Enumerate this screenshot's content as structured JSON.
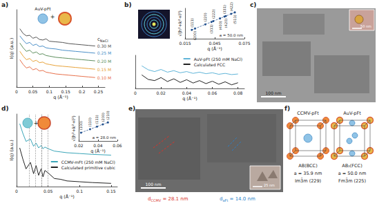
{
  "chart_data": [
    {
      "type": "line",
      "title": "a)",
      "x_label": "q (Å⁻¹)",
      "y_label": "I(q) (a.u.)",
      "icon_labels": [
        "AuV-pFt",
        "+"
      ],
      "series_header": {
        "text": "c",
        "subscript": "NaCl"
      },
      "x": [
        0.01,
        0.02,
        0.03,
        0.04,
        0.05,
        0.06,
        0.07,
        0.08,
        0.09,
        0.1,
        0.12,
        0.14,
        0.16,
        0.18,
        0.2,
        0.22,
        0.24
      ],
      "series": [
        {
          "name": "0.30 M",
          "color": "#555555",
          "values": [
            9.8,
            9.0,
            8.6,
            8.7,
            8.2,
            8.4,
            8.0,
            7.9,
            8.1,
            7.7,
            7.6,
            7.5,
            7.3,
            7.2,
            7.1,
            7.0,
            6.9
          ]
        },
        {
          "name": "0.25 M",
          "color": "#4a8fc8",
          "values": [
            8.6,
            7.9,
            7.3,
            7.5,
            7.0,
            7.2,
            6.8,
            6.9,
            6.6,
            6.5,
            6.4,
            6.2,
            6.1,
            6.0,
            5.9,
            5.8,
            5.7
          ]
        },
        {
          "name": "0.20 M",
          "color": "#5e8f5e",
          "values": [
            7.4,
            6.6,
            6.0,
            6.2,
            5.7,
            5.9,
            5.5,
            5.6,
            5.3,
            5.2,
            5.0,
            4.9,
            4.8,
            4.7,
            4.6,
            4.5,
            4.4
          ]
        },
        {
          "name": "0.15 M",
          "color": "#e8a33a",
          "values": [
            6.0,
            5.2,
            4.6,
            4.8,
            4.3,
            4.5,
            4.1,
            4.2,
            3.9,
            3.8,
            3.6,
            3.5,
            3.4,
            3.3,
            3.2,
            3.1,
            3.0
          ]
        },
        {
          "name": "0.10 M",
          "color": "#e8704a",
          "values": [
            4.6,
            3.8,
            3.2,
            3.4,
            2.9,
            3.1,
            2.7,
            2.8,
            2.5,
            2.4,
            2.2,
            2.1,
            2.0,
            1.9,
            1.8,
            1.7,
            1.6
          ]
        }
      ],
      "xlim": [
        0,
        0.27
      ],
      "xticks": [
        0,
        0.05,
        0.1,
        0.15,
        0.2,
        0.25
      ],
      "ylim": [
        0,
        13
      ],
      "tick_labels": "x"
    },
    {
      "type": "line",
      "title": "b)",
      "x_label": "q (Å⁻¹)",
      "x": [
        0.005,
        0.01,
        0.015,
        0.02,
        0.025,
        0.03,
        0.035,
        0.04,
        0.045,
        0.05,
        0.055,
        0.06,
        0.065,
        0.07,
        0.075,
        0.08
      ],
      "series": [
        {
          "name": "AuV-pFt (250 mM NaCl)",
          "color": "#5fb4d8",
          "values": [
            9.5,
            8.2,
            7.6,
            8.3,
            7.4,
            7.9,
            7.2,
            7.6,
            7.0,
            7.4,
            6.9,
            7.2,
            6.7,
            7.0,
            6.6,
            6.8
          ]
        },
        {
          "name": "Calculated FCC",
          "color": "#222222",
          "values": [
            6.5,
            5.0,
            4.6,
            5.6,
            4.3,
            5.2,
            4.0,
            4.9,
            3.8,
            4.6,
            3.6,
            4.4,
            3.4,
            4.2,
            3.2,
            3.9
          ]
        }
      ],
      "xlim": [
        0,
        0.085
      ],
      "xticks": [
        0,
        0.02,
        0.04,
        0.06,
        0.08
      ],
      "ylim": [
        2,
        13
      ],
      "tick_labels": "x",
      "legend": "upper right"
    },
    {
      "type": "line",
      "x_label": "q (Å⁻¹)",
      "y_label": "√(h²+k²+l²)",
      "annotations": [
        "a = 50.0 nm"
      ],
      "x": [
        0.0218,
        0.0251,
        0.0355,
        0.0417,
        0.0435,
        0.0503,
        0.0548,
        0.0562,
        0.0616,
        0.0653
      ],
      "values": [
        1.732,
        2,
        2.828,
        3.317,
        3.464,
        4,
        4.359,
        4.472,
        4.899,
        5.196
      ],
      "point_labels": [
        "(111)",
        "(200)",
        "(220)",
        "(311)",
        "(222)",
        "(400)",
        "(331)",
        "(420)",
        "(422)",
        "(511)"
      ],
      "color": "#1f4e8c",
      "marker": "circle",
      "line_style": "dashed",
      "xlim": [
        0.015,
        0.075
      ],
      "xticks": [
        0.015,
        0.045,
        0.075
      ],
      "ylim": [
        0,
        6
      ],
      "tick_labels": "x"
    },
    {
      "type": "line",
      "title": "d)",
      "x_label": "q (Å⁻¹)",
      "y_label": "I(q) (a.u.)",
      "icon_labels": [
        "+"
      ],
      "x": [
        0.005,
        0.01,
        0.015,
        0.022,
        0.027,
        0.031,
        0.035,
        0.039,
        0.042,
        0.045,
        0.05,
        0.06,
        0.07,
        0.08,
        0.1,
        0.12,
        0.15
      ],
      "series": [
        {
          "name": "CCMV-mFt (250 mM NaCl)",
          "color": "#3aa6b9",
          "values": [
            9.8,
            8.6,
            7.6,
            7.9,
            7.0,
            7.4,
            6.8,
            7.1,
            6.7,
            6.9,
            6.7,
            6.4,
            6.3,
            6.2,
            6.1,
            6.0,
            5.9
          ]
        },
        {
          "name": "Calculated primitive cubic",
          "color": "#222222",
          "values": [
            6.8,
            5.4,
            4.2,
            5.0,
            3.6,
            4.6,
            3.4,
            4.2,
            3.2,
            4.0,
            3.7,
            3.0,
            2.9,
            2.7,
            2.6,
            2.5,
            2.4
          ]
        }
      ],
      "peaks": [
        0.022,
        0.031,
        0.039,
        0.045,
        0.05
      ],
      "xlim": [
        0,
        0.16
      ],
      "xticks": [
        0,
        0.05,
        0.1,
        0.15
      ],
      "ylim": [
        2,
        11
      ],
      "tick_labels": "x",
      "legend": "right"
    },
    {
      "type": "line",
      "x_label": "q (Å⁻¹)",
      "y_label": "√(h²+k²+l²)",
      "annotations": [
        "a = 28.0 nm"
      ],
      "x": [
        0.0224,
        0.0317,
        0.0389,
        0.0449,
        0.0502
      ],
      "values": [
        1,
        1.414,
        1.732,
        2,
        2.236
      ],
      "point_labels": [
        "(100)",
        "(110)",
        "(111)",
        "(200)",
        "(210)"
      ],
      "color": "#1f4e8c",
      "marker": "circle",
      "line_style": "dashed",
      "xlim": [
        0.02,
        0.06
      ],
      "xticks": [
        0.02,
        0.04,
        0.06
      ],
      "ylim": [
        0,
        3
      ],
      "tick_labels": "x"
    }
  ],
  "panels": {
    "c": {
      "title": "c)",
      "scale_bar": "100 nm",
      "inset_scale_bar": "50 nm"
    },
    "e": {
      "title": "e)",
      "scale_bar": "100 nm",
      "inset_scale_bar": "25 nm",
      "measurements": [
        {
          "symbol": "d",
          "subscript": "CCMV",
          "text": " = 28.1 nm",
          "color": "#d9342b"
        },
        {
          "symbol": "d",
          "subscript": "aFt",
          "text": " = 14.0 nm",
          "color": "#2a7fc9"
        }
      ]
    },
    "f": {
      "title": "f)",
      "structures": [
        {
          "name": "CCMV-pFt",
          "lattice": "AB(BCC)",
          "parameter": "a = 35.9 nm",
          "space_group": "Im3̄m (229)"
        },
        {
          "name": "AuV-pFt",
          "lattice": "AB₂(FCC)",
          "parameter": "a = 50.0 nm",
          "space_group": "Fm3̄m (225)"
        }
      ]
    }
  }
}
